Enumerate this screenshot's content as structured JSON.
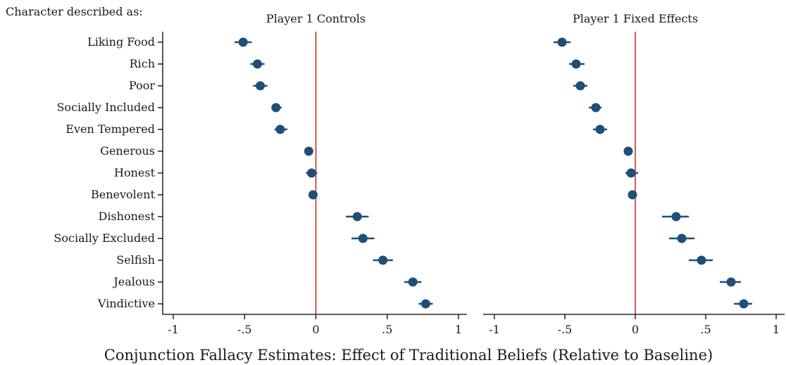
{
  "header_label": "Character described as:",
  "xlabel": "Conjunction Fallacy Estimates: Effect of Traditional Beliefs (Relative to Baseline)",
  "categories": [
    "Liking Food",
    "Rich",
    "Poor",
    "Socially Included",
    "Even Tempered",
    "Generous",
    "Honest",
    "Benevolent",
    "Dishonest",
    "Socially Excluded",
    "Selfish",
    "Jealous",
    "Vindictive"
  ],
  "xticks": [
    -1,
    -0.5,
    0,
    0.5,
    1
  ],
  "xtick_labels": [
    "-1",
    "-.5",
    "0",
    ".5",
    "1"
  ],
  "colors": {
    "marker": "#1f4e79",
    "reference_line": "#cc2222",
    "axis": "#000000"
  },
  "chart_data": [
    {
      "type": "scatter",
      "title": "Player 1 Controls",
      "xlim": [
        -1,
        1
      ],
      "reference_x": 0,
      "points": [
        {
          "category": "Liking Food",
          "estimate": -0.51,
          "ci": [
            -0.57,
            -0.45
          ]
        },
        {
          "category": "Rich",
          "estimate": -0.41,
          "ci": [
            -0.46,
            -0.36
          ]
        },
        {
          "category": "Poor",
          "estimate": -0.39,
          "ci": [
            -0.44,
            -0.34
          ]
        },
        {
          "category": "Socially Included",
          "estimate": -0.28,
          "ci": [
            -0.31,
            -0.24
          ]
        },
        {
          "category": "Even Tempered",
          "estimate": -0.25,
          "ci": [
            -0.29,
            -0.2
          ]
        },
        {
          "category": "Generous",
          "estimate": -0.05,
          "ci": [
            -0.07,
            -0.03
          ]
        },
        {
          "category": "Honest",
          "estimate": -0.03,
          "ci": [
            -0.07,
            0.01
          ]
        },
        {
          "category": "Benevolent",
          "estimate": -0.02,
          "ci": [
            -0.04,
            0.0
          ]
        },
        {
          "category": "Dishonest",
          "estimate": 0.29,
          "ci": [
            0.21,
            0.37
          ]
        },
        {
          "category": "Socially Excluded",
          "estimate": 0.33,
          "ci": [
            0.25,
            0.41
          ]
        },
        {
          "category": "Selfish",
          "estimate": 0.47,
          "ci": [
            0.4,
            0.54
          ]
        },
        {
          "category": "Jealous",
          "estimate": 0.68,
          "ci": [
            0.62,
            0.74
          ]
        },
        {
          "category": "Vindictive",
          "estimate": 0.77,
          "ci": [
            0.72,
            0.82
          ]
        }
      ]
    },
    {
      "type": "scatter",
      "title": "Player 1 Fixed Effects",
      "xlim": [
        -1,
        1
      ],
      "reference_x": 0,
      "points": [
        {
          "category": "Liking Food",
          "estimate": -0.52,
          "ci": [
            -0.58,
            -0.46
          ]
        },
        {
          "category": "Rich",
          "estimate": -0.42,
          "ci": [
            -0.47,
            -0.36
          ]
        },
        {
          "category": "Poor",
          "estimate": -0.39,
          "ci": [
            -0.44,
            -0.34
          ]
        },
        {
          "category": "Socially Included",
          "estimate": -0.28,
          "ci": [
            -0.33,
            -0.24
          ]
        },
        {
          "category": "Even Tempered",
          "estimate": -0.25,
          "ci": [
            -0.3,
            -0.2
          ]
        },
        {
          "category": "Generous",
          "estimate": -0.05,
          "ci": [
            -0.07,
            -0.03
          ]
        },
        {
          "category": "Honest",
          "estimate": -0.03,
          "ci": [
            -0.07,
            0.02
          ]
        },
        {
          "category": "Benevolent",
          "estimate": -0.02,
          "ci": [
            -0.04,
            0.0
          ]
        },
        {
          "category": "Dishonest",
          "estimate": 0.29,
          "ci": [
            0.19,
            0.38
          ]
        },
        {
          "category": "Socially Excluded",
          "estimate": 0.33,
          "ci": [
            0.24,
            0.42
          ]
        },
        {
          "category": "Selfish",
          "estimate": 0.47,
          "ci": [
            0.38,
            0.55
          ]
        },
        {
          "category": "Jealous",
          "estimate": 0.68,
          "ci": [
            0.6,
            0.75
          ]
        },
        {
          "category": "Vindictive",
          "estimate": 0.77,
          "ci": [
            0.7,
            0.83
          ]
        }
      ]
    }
  ]
}
